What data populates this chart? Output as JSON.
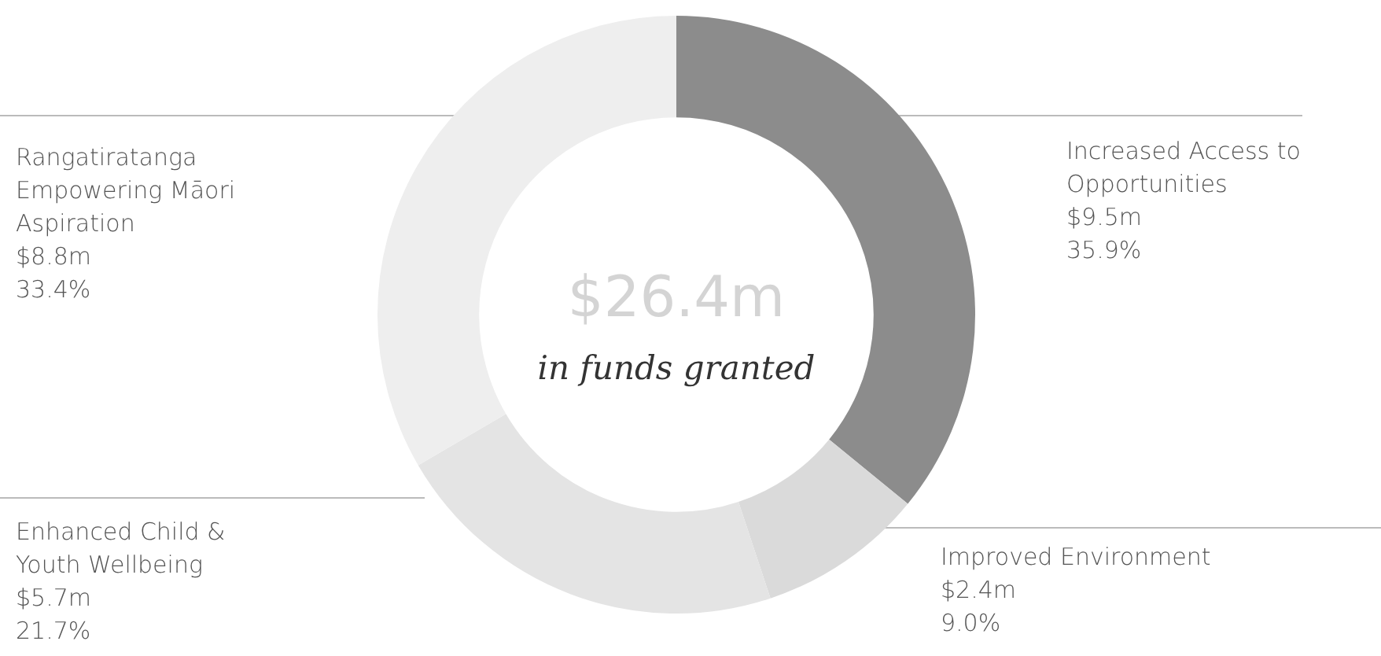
{
  "chart_data": {
    "type": "donut",
    "title": "$26.4m",
    "subtitle": "in funds granted",
    "categories": [
      "Increased Access to Opportunities",
      "Improved Environment",
      "Enhanced Child & Youth Wellbeing",
      "Rangatiratanga Empowering Māori Aspiration"
    ],
    "values": [
      35.9,
      9.0,
      21.7,
      33.4
    ],
    "colors": [
      "#8c8c8c",
      "#dadada",
      "#e4e4e4",
      "#eeeeee"
    ],
    "value_labels": [
      "$9.5m\n35.9%",
      "$2.4m\n9.0%",
      "$5.7m\n21.7%",
      "$8.8m\n33.4%"
    ],
    "legend": false
  }
}
